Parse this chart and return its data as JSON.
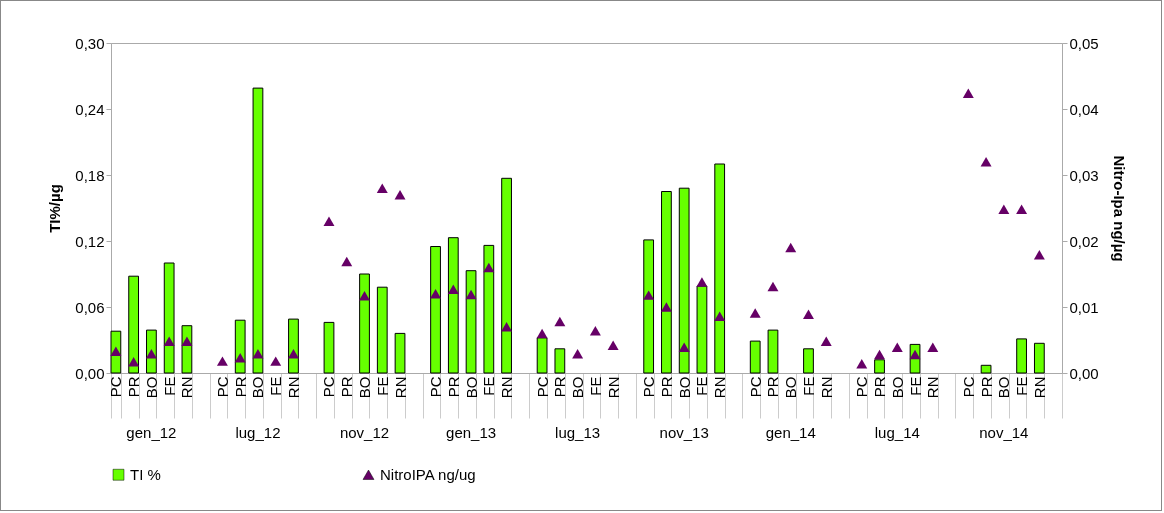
{
  "chart_data": {
    "type": "bar",
    "categories": [
      "PC",
      "PR",
      "BO",
      "FE",
      "RN",
      null,
      "PC",
      "PR",
      "BO",
      "FE",
      "RN",
      null,
      "PC",
      "PR",
      "BO",
      "FE",
      "RN",
      null,
      "PC",
      "PR",
      "BO",
      "FE",
      "RN",
      null,
      "PC",
      "PR",
      "BO",
      "FE",
      "RN",
      null,
      "PC",
      "PR",
      "BO",
      "FE",
      "RN",
      null,
      "PC",
      "PR",
      "BO",
      "FE",
      "RN",
      null,
      "PC",
      "PR",
      "BO",
      "FE",
      "RN",
      null,
      "PC",
      "PR",
      "BO",
      "FE",
      "RN",
      null
    ],
    "annotations": [
      "gen_12",
      "lug_12",
      "nov_12",
      "gen_13",
      "lug_13",
      "nov_13",
      "gen_14",
      "lug_14",
      "nov_14"
    ],
    "series": [
      {
        "name": "TI %",
        "color": "#66ff00",
        "values": [
          0.038,
          0.088,
          0.039,
          0.1,
          0.043,
          null,
          null,
          0.048,
          0.259,
          null,
          0.049,
          null,
          0.046,
          null,
          0.09,
          0.078,
          0.036,
          null,
          0.115,
          0.123,
          0.093,
          0.116,
          0.177,
          null,
          0.032,
          0.022,
          null,
          null,
          null,
          null,
          0.121,
          0.165,
          0.168,
          0.079,
          0.19,
          null,
          0.029,
          0.039,
          null,
          0.022,
          null,
          null,
          null,
          0.012,
          null,
          0.026,
          null,
          null,
          null,
          0.007,
          null,
          0.031,
          0.027,
          null
        ]
      },
      {
        "name": "NitroIPA ng/ug",
        "type": "scatter",
        "axis": "y2",
        "color": "#660066",
        "marker": "triangle",
        "values": [
          0.0033,
          0.0017,
          0.0029,
          0.0048,
          0.0048,
          null,
          0.0018,
          0.0023,
          0.0029,
          0.0018,
          0.0029,
          null,
          0.023,
          0.0169,
          0.0117,
          0.028,
          0.027,
          null,
          0.012,
          0.0127,
          0.0119,
          0.016,
          0.007,
          null,
          0.006,
          0.0078,
          0.0029,
          0.0064,
          0.0042,
          null,
          0.0118,
          0.01,
          0.0039,
          0.0138,
          0.0086,
          null,
          0.0091,
          0.0131,
          0.019,
          0.0089,
          0.0048,
          null,
          0.0014,
          0.0028,
          0.0039,
          0.0028,
          0.0039,
          null,
          0.0424,
          0.032,
          0.0248,
          0.0248,
          0.0179,
          null
        ]
      }
    ],
    "ylabel": "TI%/µg",
    "y2label": "Nitro-Ipa ng/µg",
    "ylim": [
      0,
      0.3
    ],
    "yticks": [
      {
        "value": 0,
        "label": "0,00"
      },
      {
        "value": 0.06,
        "label": "0,06"
      },
      {
        "value": 0.12,
        "label": "0,12"
      },
      {
        "value": 0.18,
        "label": "0,18"
      },
      {
        "value": 0.24,
        "label": "0,24"
      },
      {
        "value": 0.3,
        "label": "0,30"
      }
    ],
    "y2lim": [
      0,
      0.05
    ],
    "y2ticks": [
      {
        "value": 0,
        "label": "0,00"
      },
      {
        "value": 0.01,
        "label": "0,01"
      },
      {
        "value": 0.02,
        "label": "0,02"
      },
      {
        "value": 0.03,
        "label": "0,03"
      },
      {
        "value": 0.04,
        "label": "0,04"
      },
      {
        "value": 0.05,
        "label": "0,05"
      }
    ],
    "legend": "bottom"
  }
}
